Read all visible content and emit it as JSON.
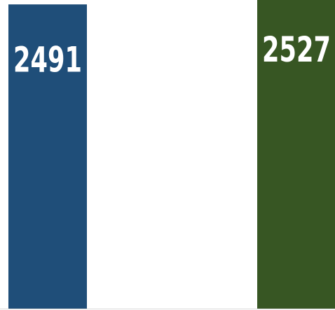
{
  "chart_data": {
    "type": "bar",
    "categories": [
      "",
      ""
    ],
    "values": [
      2491,
      2527
    ],
    "data_labels": [
      "2491",
      "2527"
    ],
    "colors": [
      "#1f4e79",
      "#375623"
    ],
    "ylim": [
      0,
      2527
    ],
    "grid": false,
    "legend": "none",
    "title": "",
    "xlabel": "",
    "ylabel": ""
  }
}
